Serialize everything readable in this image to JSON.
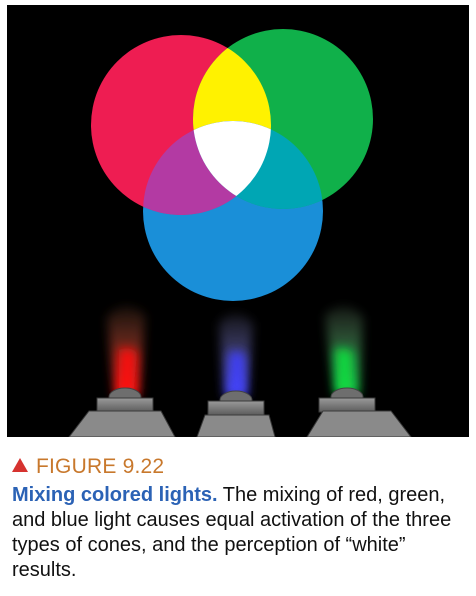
{
  "figure": {
    "label": "FIGURE 9.22",
    "caption_lead": "Mixing colored lights.",
    "caption_body": " The mixing of red, green, and blue light causes equal activation of the three types of cones, and the perception of “white” results."
  },
  "colors": {
    "background": "#000000",
    "red": "#ee1d52",
    "green": "#10b04a",
    "blue": "#1a8fd8",
    "yellow": "#fff200",
    "magenta": "#b33aa3",
    "cyan": "#00a6b4",
    "white": "#ffffff",
    "label_orange": "#c8782c",
    "lead_blue": "#2b62b5",
    "triangle_red": "#d6322f"
  },
  "icons": {
    "triangle": "red-triangle-icon",
    "projectors": [
      "red-spotlight-icon",
      "blue-spotlight-icon",
      "green-spotlight-icon"
    ]
  }
}
